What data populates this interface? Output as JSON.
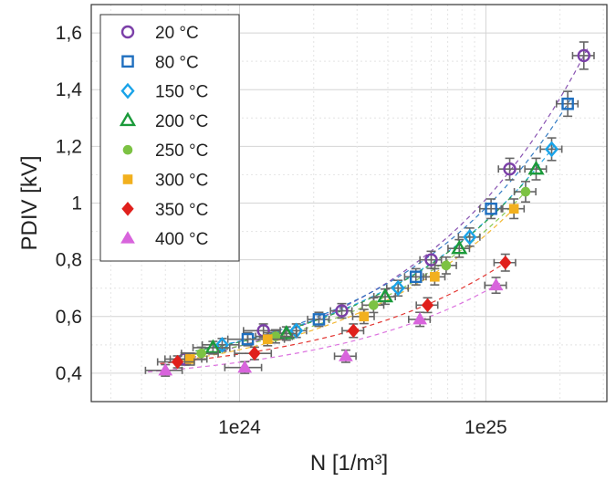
{
  "chart_data": {
    "type": "scatter",
    "title": "",
    "xlabel": "N [1/m³]",
    "ylabel": "PDIV [kV]",
    "x_scale": "log",
    "xlim": [
      2.5e+23,
      3.1e+25
    ],
    "ylim": [
      0.3,
      1.7
    ],
    "x_ticks": [
      {
        "value": 1e+24,
        "label": "1e24"
      },
      {
        "value": 1e+25,
        "label": "1e25"
      }
    ],
    "y_ticks": [
      {
        "value": 0.4,
        "label": "0,4"
      },
      {
        "value": 0.6,
        "label": "0,6"
      },
      {
        "value": 0.8,
        "label": "0,8"
      },
      {
        "value": 1.0,
        "label": "1"
      },
      {
        "value": 1.2,
        "label": "1,2"
      },
      {
        "value": 1.4,
        "label": "1,4"
      },
      {
        "value": 1.6,
        "label": "1,6"
      }
    ],
    "grid": true,
    "legend_position": "top-left",
    "series": [
      {
        "name": "20 °C",
        "marker": "circle-open",
        "color": "#7b3fa8",
        "x": [
          6e+23,
          1.25e+24,
          2.6e+24,
          6e+24,
          1.25e+25,
          2.5e+25
        ],
        "y": [
          0.45,
          0.55,
          0.62,
          0.8,
          1.12,
          1.52
        ]
      },
      {
        "name": "80 °C",
        "marker": "square-open",
        "color": "#1f6fbf",
        "x": [
          1.08e+24,
          2.1e+24,
          5.2e+24,
          1.05e+25,
          2.15e+25
        ],
        "y": [
          0.52,
          0.59,
          0.74,
          0.98,
          1.35
        ]
      },
      {
        "name": "150 °C",
        "marker": "diamond-open",
        "color": "#1aa3e8",
        "x": [
          8.5e+23,
          1.7e+24,
          4.4e+24,
          8.6e+24,
          1.85e+25
        ],
        "y": [
          0.5,
          0.55,
          0.7,
          0.88,
          1.19
        ]
      },
      {
        "name": "200 °C",
        "marker": "triangle-open",
        "color": "#1a9a3a",
        "x": [
          7.8e+23,
          1.55e+24,
          3.9e+24,
          7.8e+24,
          1.6e+25
        ],
        "y": [
          0.49,
          0.54,
          0.67,
          0.84,
          1.12
        ]
      },
      {
        "name": "250 °C",
        "marker": "circle-filled",
        "color": "#7cc243",
        "x": [
          7e+23,
          1.4e+24,
          3.5e+24,
          6.9e+24,
          1.45e+25
        ],
        "y": [
          0.47,
          0.53,
          0.64,
          0.78,
          1.04
        ]
      },
      {
        "name": "300 °C",
        "marker": "square-filled",
        "color": "#f2b01e",
        "x": [
          6.3e+23,
          1.3e+24,
          3.2e+24,
          6.2e+24,
          1.3e+25
        ],
        "y": [
          0.45,
          0.52,
          0.6,
          0.74,
          0.98
        ]
      },
      {
        "name": "350 °C",
        "marker": "diamond-filled",
        "color": "#e0201c",
        "x": [
          5.6e+23,
          1.15e+24,
          2.9e+24,
          5.8e+24,
          1.2e+25
        ],
        "y": [
          0.44,
          0.47,
          0.55,
          0.64,
          0.79
        ]
      },
      {
        "name": "400 °C",
        "marker": "triangle-filled",
        "color": "#d864dc",
        "x": [
          5e+23,
          1.05e+24,
          2.7e+24,
          5.4e+24,
          1.1e+25
        ],
        "y": [
          0.41,
          0.42,
          0.46,
          0.59,
          0.71
        ]
      }
    ]
  }
}
